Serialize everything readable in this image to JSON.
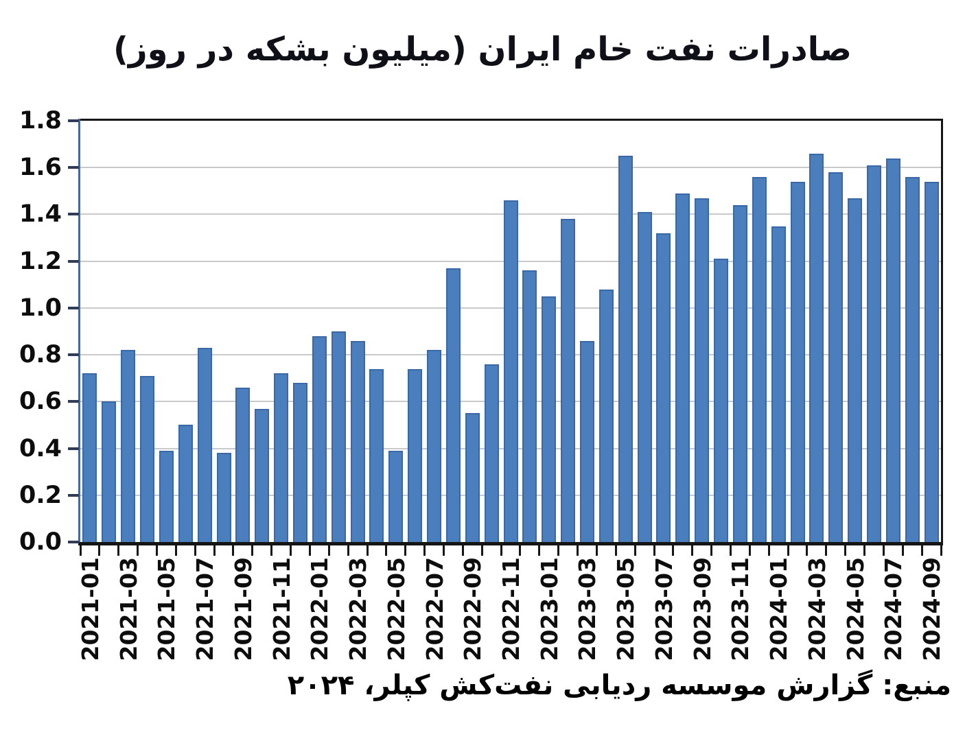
{
  "title": "صادرات نفت خام ایران (میلیون بشکه در روز)",
  "source": "منبع: گزارش موسسه ردیابی نفت‌کش کپلر، ۲۰۲۴",
  "colors": {
    "background": "#ffffff",
    "bar_fill": "#4a7ebd",
    "bar_border": "#3a67a5",
    "gridline": "#c9c9c9",
    "plot_border": "#151515",
    "y_axis_line": "#46689b",
    "tick": "#2e3c58",
    "text": "#0d0d0d"
  },
  "chart_data": {
    "type": "bar",
    "title": "صادرات نفت خام ایران (میلیون بشکه در روز)",
    "xlabel": "",
    "ylabel": "",
    "ylim": [
      0,
      1.8
    ],
    "ytick_step": 0.2,
    "grid": true,
    "legend": false,
    "categories": [
      "2021-01",
      "2021-02",
      "2021-03",
      "2021-04",
      "2021-05",
      "2021-06",
      "2021-07",
      "2021-08",
      "2021-09",
      "2021-10",
      "2021-11",
      "2021-12",
      "2022-01",
      "2022-02",
      "2022-03",
      "2022-04",
      "2022-05",
      "2022-06",
      "2022-07",
      "2022-08",
      "2022-09",
      "2022-10",
      "2022-11",
      "2022-12",
      "2023-01",
      "2023-02",
      "2023-03",
      "2023-04",
      "2023-05",
      "2023-06",
      "2023-07",
      "2023-08",
      "2023-09",
      "2023-10",
      "2023-11",
      "2023-12",
      "2024-01",
      "2024-02",
      "2024-03",
      "2024-04",
      "2024-05",
      "2024-06",
      "2024-07",
      "2024-08",
      "2024-09"
    ],
    "values": [
      0.72,
      0.6,
      0.82,
      0.71,
      0.39,
      0.5,
      0.83,
      0.38,
      0.66,
      0.57,
      0.72,
      0.68,
      0.88,
      0.9,
      0.86,
      0.74,
      0.39,
      0.74,
      0.82,
      1.17,
      0.55,
      0.76,
      1.46,
      1.16,
      1.05,
      1.38,
      0.86,
      1.08,
      1.65,
      1.41,
      1.32,
      1.49,
      1.47,
      1.21,
      1.44,
      1.56,
      1.35,
      1.54,
      1.66,
      1.58,
      1.47,
      1.61,
      1.64,
      1.56,
      1.54
    ],
    "ytick_labels": [
      "1.8",
      "1.6",
      "1.4",
      "1.2",
      "1.0",
      "0.8",
      "0.6",
      "0.4",
      "0.2",
      "0.0"
    ],
    "xtick_labels": [
      "2021-01",
      "2021-03",
      "2021-05",
      "2021-07",
      "2021-09",
      "2021-11",
      "2022-01",
      "2022-03",
      "2022-05",
      "2022-07",
      "2022-09",
      "2022-11",
      "2023-01",
      "2023-03",
      "2023-05",
      "2023-07",
      "2023-09",
      "2023-11",
      "2024-01",
      "2024-03",
      "2024-05",
      "2024-07",
      "2024-09"
    ]
  }
}
